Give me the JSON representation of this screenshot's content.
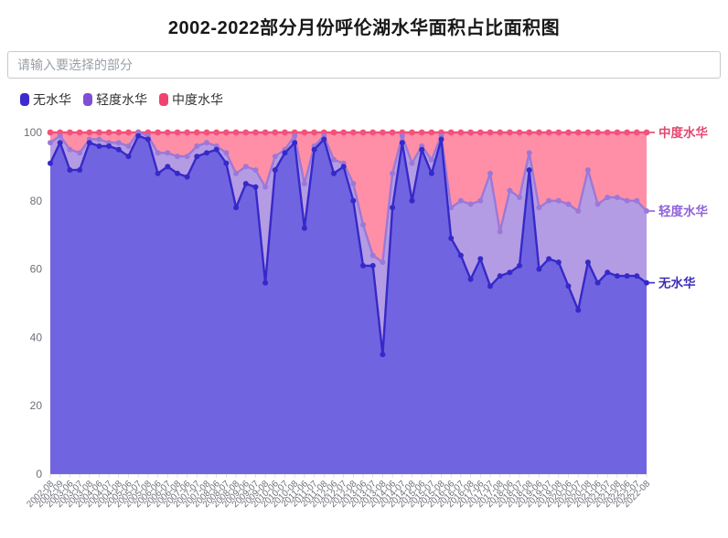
{
  "title": "2002-2022部分月份呼伦湖水华面积占比面积图",
  "search": {
    "placeholder": "请输入要选择的部分"
  },
  "legend": [
    {
      "label": "无水华",
      "color": "#3d2bd0"
    },
    {
      "label": "轻度水华",
      "color": "#7d4fd4"
    },
    {
      "label": "中度水华",
      "color": "#f0436f"
    }
  ],
  "chart_data": {
    "type": "area",
    "stacked": true,
    "stack_total": 100,
    "title": "2002-2022部分月份呼伦湖水华面积占比面积图",
    "xlabel": "",
    "ylabel": "",
    "ylim": [
      0,
      100
    ],
    "yticks": [
      0,
      20,
      40,
      60,
      80,
      100
    ],
    "grid": true,
    "legend_position": "top-left",
    "x": [
      "2002-08",
      "2002-09",
      "2003-06",
      "2003-07",
      "2003-08",
      "2004-06",
      "2004-07",
      "2004-08",
      "2005-06",
      "2005-07",
      "2005-08",
      "2006-06",
      "2006-07",
      "2006-08",
      "2007-06",
      "2007-07",
      "2007-08",
      "2008-06",
      "2008-07",
      "2008-08",
      "2009-06",
      "2009-07",
      "2009-08",
      "2010-06",
      "2010-07",
      "2010-08",
      "2011-06",
      "2011-07",
      "2011-08",
      "2012-06",
      "2012-07",
      "2012-08",
      "2013-06",
      "2013-07",
      "2013-08",
      "2014-06",
      "2014-07",
      "2014-08",
      "2015-06",
      "2015-07",
      "2015-08",
      "2016-06",
      "2016-07",
      "2016-08",
      "2017-06",
      "2017-07",
      "2017-08",
      "2018-06",
      "2018-07",
      "2018-08",
      "2019-06",
      "2019-07",
      "2019-08",
      "2020-06",
      "2020-07",
      "2020-08",
      "2021-06",
      "2021-07",
      "2021-08",
      "2022-06",
      "2022-07",
      "2022-08"
    ],
    "series": [
      {
        "name": "无水华",
        "line_color": "#3629c9",
        "fill_color": "#7164e0",
        "label_color": "#3a2bb8",
        "values": [
          91,
          97,
          89,
          89,
          97,
          96,
          96,
          95,
          93,
          99,
          98,
          88,
          90,
          88,
          87,
          93,
          94,
          95,
          91,
          78,
          85,
          84,
          56,
          89,
          94,
          97,
          72,
          95,
          98,
          88,
          90,
          80,
          61,
          61,
          35,
          78,
          97,
          80,
          95,
          88,
          98,
          69,
          64,
          57,
          63,
          55,
          58,
          59,
          61,
          89,
          60,
          63,
          62,
          55,
          48,
          62,
          56,
          59,
          58,
          58,
          58,
          56
        ]
      },
      {
        "name": "轻度水华",
        "line_color": "#9b78d8",
        "fill_color": "#b49ce4",
        "label_color": "#8f62d8",
        "values": [
          6,
          2,
          6,
          5,
          1,
          2,
          1,
          2,
          3,
          1,
          1,
          6,
          4,
          5,
          6,
          3,
          3,
          1,
          3,
          10,
          5,
          5,
          28,
          4,
          1,
          2,
          13,
          1,
          1,
          4,
          1,
          5,
          12,
          3,
          27,
          10,
          2,
          11,
          1,
          4,
          1,
          9,
          16,
          22,
          17,
          33,
          13,
          24,
          20,
          5,
          18,
          17,
          18,
          24,
          29,
          27,
          23,
          22,
          23,
          22,
          22,
          21
        ]
      },
      {
        "name": "中度水华",
        "line_color": "#f4517b",
        "fill_color": "#ff8fa6",
        "label_color": "#e4476d",
        "values": [
          3,
          1,
          5,
          6,
          2,
          2,
          3,
          3,
          4,
          0,
          1,
          6,
          6,
          7,
          7,
          4,
          3,
          4,
          6,
          12,
          10,
          11,
          16,
          7,
          5,
          1,
          15,
          4,
          1,
          8,
          9,
          15,
          27,
          36,
          38,
          12,
          1,
          9,
          4,
          8,
          1,
          22,
          20,
          21,
          20,
          12,
          29,
          17,
          19,
          6,
          22,
          20,
          20,
          21,
          23,
          11,
          21,
          19,
          19,
          20,
          20,
          23
        ]
      }
    ],
    "end_labels": [
      "中度水华",
      "轻度水华",
      "无水华"
    ]
  }
}
